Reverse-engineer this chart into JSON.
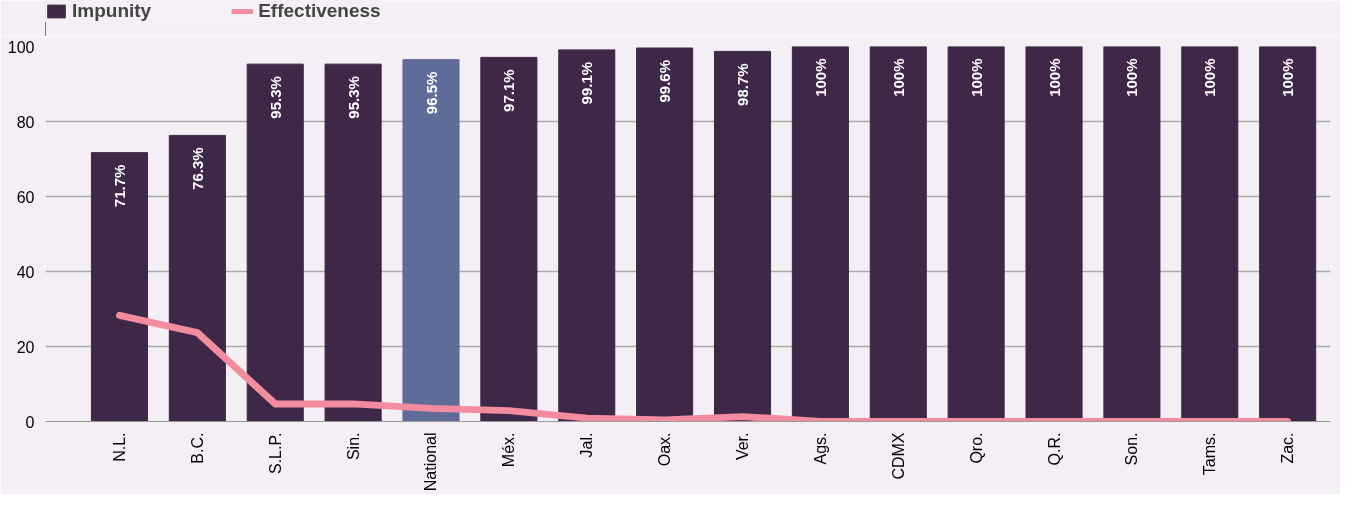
{
  "chart_data": {
    "type": "bar",
    "categories": [
      "N.L.",
      "B.C.",
      "S.L.P.",
      "Sin.",
      "National",
      "Méx.",
      "Jal.",
      "Oax.",
      "Ver.",
      "Ags.",
      "CDMX",
      "Qro.",
      "Q.R.",
      "Son.",
      "Tams.",
      "Zac."
    ],
    "series": [
      {
        "name": "Impunity",
        "color": "#3f2847",
        "colors": [
          "#3f2847",
          "#3f2847",
          "#3f2847",
          "#3f2847",
          "#5f6b99",
          "#3f2847",
          "#3f2847",
          "#3f2847",
          "#3f2847",
          "#3f2847",
          "#3f2847",
          "#3f2847",
          "#3f2847",
          "#3f2847",
          "#3f2847",
          "#3f2847"
        ],
        "values": [
          71.7,
          76.3,
          95.3,
          95.3,
          96.5,
          97.1,
          99.1,
          99.6,
          98.7,
          100,
          100,
          100,
          100,
          100,
          100,
          100
        ],
        "value_labels": [
          "71.7%",
          "76.3%",
          "95.3%",
          "95.3%",
          "96.5%",
          "97.1%",
          "99.1%",
          "99.6%",
          "98.7%",
          "100%",
          "100%",
          "100%",
          "100%",
          "100%",
          "100%",
          "100%"
        ]
      },
      {
        "name": "Effectiveness",
        "type": "line",
        "color": "#f48ca0",
        "values": [
          28.3,
          23.7,
          4.7,
          4.7,
          3.5,
          2.9,
          0.9,
          0.4,
          1.3,
          0,
          0,
          0,
          0,
          0,
          0,
          0
        ]
      }
    ],
    "ylim": [
      0,
      100
    ],
    "yticks": [
      0,
      20,
      40,
      60,
      80,
      100
    ],
    "grid": "y",
    "legend": "top left"
  }
}
